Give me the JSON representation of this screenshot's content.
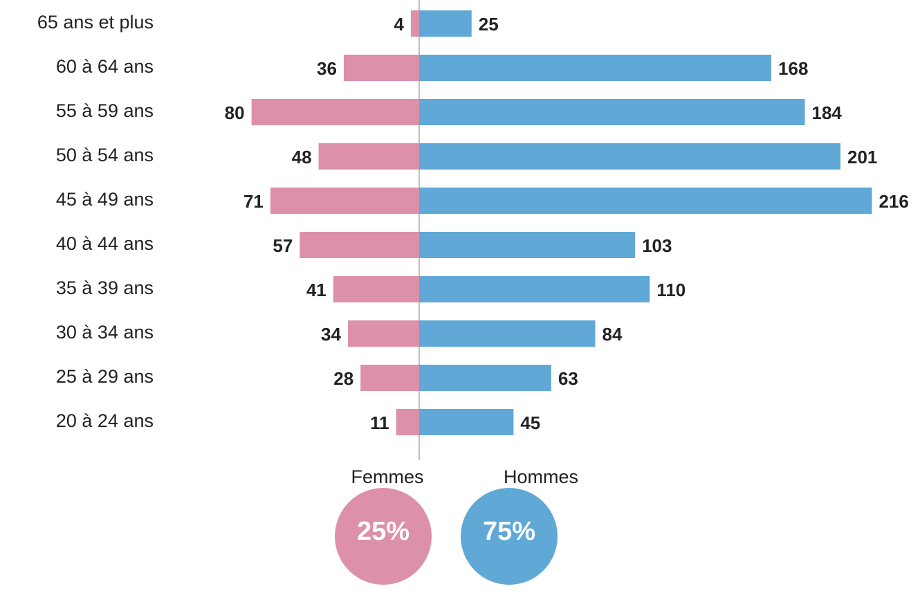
{
  "chart_data": {
    "type": "bar",
    "categories": [
      "65 ans et plus",
      "60 à 64 ans",
      "55 à 59 ans",
      "50 à 54 ans",
      "45 à 49 ans",
      "40 à 44 ans",
      "35 à 39 ans",
      "30 à 34 ans",
      "25 à 29 ans",
      "20 à 24 ans"
    ],
    "series": [
      {
        "name": "Femmes",
        "color": "#dd90aa",
        "values": [
          4,
          36,
          80,
          48,
          71,
          57,
          41,
          34,
          28,
          11
        ]
      },
      {
        "name": "Hommes",
        "color": "#60a8d6",
        "values": [
          25,
          168,
          184,
          201,
          216,
          103,
          110,
          84,
          63,
          45
        ]
      }
    ],
    "shares": {
      "values": [
        25,
        75
      ],
      "value_labels": [
        "25%",
        "75%"
      ]
    }
  }
}
